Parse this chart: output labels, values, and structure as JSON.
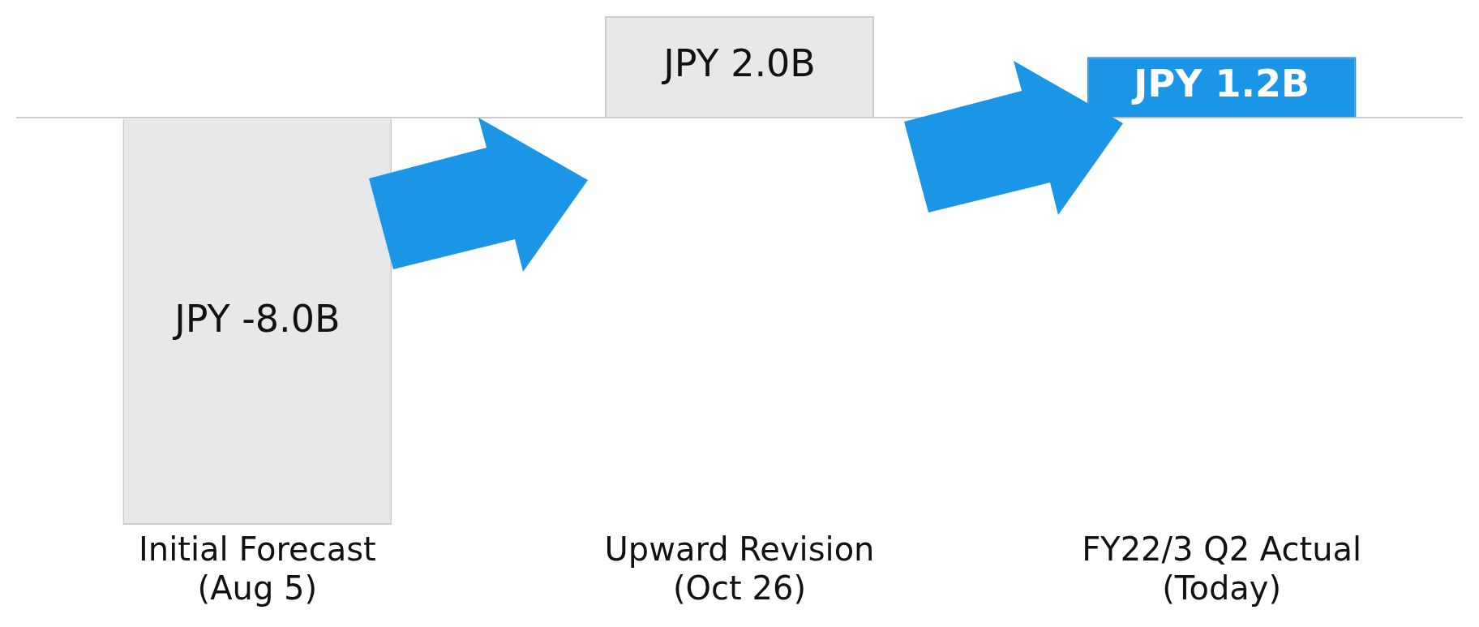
{
  "chart_data": {
    "type": "bar",
    "categories": [
      "Initial Forecast\n(Aug 5)",
      "Upward Revision\n(Oct 26)",
      "FY22/3 Q2 Actual\n(Today)"
    ],
    "values": [
      -8.0,
      2.0,
      1.2
    ],
    "colors": [
      "#e7e8ea",
      "#e7e8ea",
      "#1b96e6"
    ],
    "value_labels": [
      "JPY -8.0B",
      "JPY 2.0B",
      "JPY 1.2B"
    ],
    "tick_labels": "x",
    "grid": false,
    "legend": false
  }
}
